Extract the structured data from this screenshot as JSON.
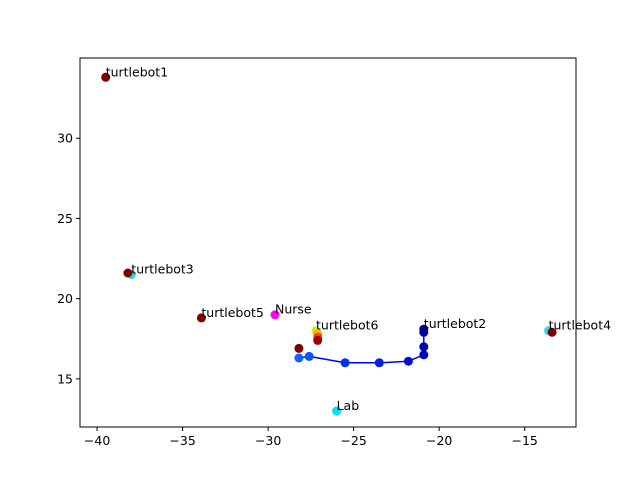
{
  "chart_data": {
    "type": "scatter",
    "title": "",
    "xlabel": "",
    "ylabel": "",
    "xlim": [
      -41,
      -12
    ],
    "ylim": [
      12,
      35
    ],
    "xticks": [
      -40,
      -35,
      -30,
      -25,
      -20,
      -15
    ],
    "yticks": [
      15,
      20,
      25,
      30
    ],
    "xtick_labels": [
      "−40",
      "−35",
      "−30",
      "−25",
      "−20",
      "−15"
    ],
    "ytick_labels": [
      "15",
      "20",
      "25",
      "30"
    ],
    "grid": false,
    "path": {
      "color": "#0000ff",
      "x": [
        -28.2,
        -27.6,
        -25.5,
        -23.5,
        -21.8,
        -20.9,
        -20.9,
        -20.9
      ],
      "y": [
        16.3,
        16.4,
        16.0,
        16.0,
        16.1,
        16.5,
        17.0,
        17.9
      ]
    },
    "points": [
      {
        "x": -39.5,
        "y": 33.8,
        "color": "#800000"
      },
      {
        "x": -38.0,
        "y": 21.5,
        "color": "#2fd6f0"
      },
      {
        "x": -38.2,
        "y": 21.6,
        "color": "#800000"
      },
      {
        "x": -33.9,
        "y": 18.8,
        "color": "#800000"
      },
      {
        "x": -29.6,
        "y": 19.0,
        "color": "#ff00ff"
      },
      {
        "x": -27.2,
        "y": 18.0,
        "color": "#c8f020"
      },
      {
        "x": -27.1,
        "y": 17.8,
        "color": "#ffb000"
      },
      {
        "x": -27.1,
        "y": 17.6,
        "color": "#ff4000"
      },
      {
        "x": -27.1,
        "y": 17.4,
        "color": "#a00000"
      },
      {
        "x": -28.2,
        "y": 16.9,
        "color": "#800000"
      },
      {
        "x": -28.2,
        "y": 16.3,
        "color": "#1060ff"
      },
      {
        "x": -27.6,
        "y": 16.4,
        "color": "#1050ff"
      },
      {
        "x": -25.5,
        "y": 16.0,
        "color": "#0030f0"
      },
      {
        "x": -23.5,
        "y": 16.0,
        "color": "#0020e0"
      },
      {
        "x": -21.8,
        "y": 16.1,
        "color": "#0010d0"
      },
      {
        "x": -20.9,
        "y": 16.5,
        "color": "#0000c0"
      },
      {
        "x": -20.9,
        "y": 17.0,
        "color": "#0000b0"
      },
      {
        "x": -20.9,
        "y": 17.9,
        "color": "#0000a0"
      },
      {
        "x": -20.9,
        "y": 18.1,
        "color": "#000090"
      },
      {
        "x": -13.6,
        "y": 18.0,
        "color": "#2fd6f0"
      },
      {
        "x": -13.4,
        "y": 17.9,
        "color": "#800000"
      },
      {
        "x": -26.0,
        "y": 13.0,
        "color": "#00e0ff"
      }
    ],
    "annotations": [
      {
        "text": "turtlebot1",
        "x": -39.5,
        "y": 33.8
      },
      {
        "text": "turtlebot3",
        "x": -38.0,
        "y": 21.5
      },
      {
        "text": "turtlebot5",
        "x": -33.9,
        "y": 18.8
      },
      {
        "text": "Nurse",
        "x": -29.6,
        "y": 19.0
      },
      {
        "text": "turtlebot6",
        "x": -27.2,
        "y": 18.0
      },
      {
        "text": "turtlebot2",
        "x": -20.9,
        "y": 18.1
      },
      {
        "text": "turtlebot4",
        "x": -13.6,
        "y": 18.0
      },
      {
        "text": "Lab",
        "x": -26.0,
        "y": 13.0
      }
    ]
  }
}
